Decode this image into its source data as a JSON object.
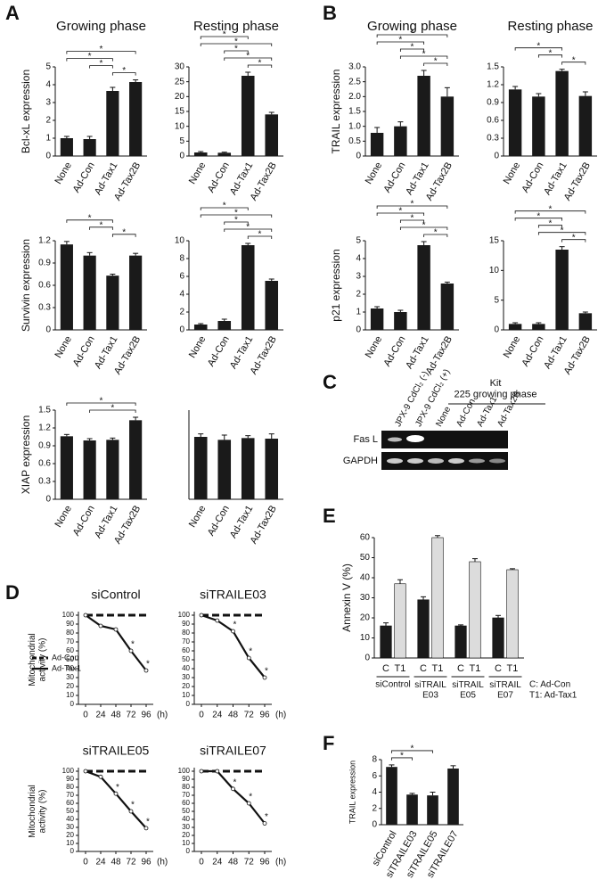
{
  "panel_labels": [
    "A",
    "B",
    "C",
    "D",
    "E",
    "F"
  ],
  "chart_data": [
    {
      "type": "bar",
      "title": "Growing phase",
      "ylabel": "Bcl-xL expression",
      "categories": [
        "None",
        "Ad-Con",
        "Ad-Tax1",
        "Ad-Tax2B"
      ],
      "values": [
        1.0,
        0.95,
        3.65,
        4.15
      ],
      "errors": [
        0.1,
        0.15,
        0.2,
        0.12
      ],
      "color": "#1a1a1a",
      "ylim": [
        0,
        5
      ],
      "yticks": [
        0,
        1,
        2,
        3,
        4,
        5
      ],
      "significance": [
        {
          "from": 2,
          "to": 3,
          "label": "*"
        },
        {
          "from": 1,
          "to": 2,
          "label": "*"
        },
        {
          "from": 0,
          "to": 2,
          "label": "*"
        },
        {
          "from": 0,
          "to": 3,
          "label": "*"
        }
      ]
    },
    {
      "type": "bar",
      "title": "Resting phase",
      "categories": [
        "None",
        "Ad-Con",
        "Ad-Tax1",
        "Ad-Tax2B"
      ],
      "values": [
        1.2,
        1.1,
        27,
        14
      ],
      "errors": [
        0.3,
        0.2,
        1.2,
        0.7
      ],
      "color": "#1a1a1a",
      "ylim": [
        0,
        30
      ],
      "yticks": [
        0,
        5,
        10,
        15,
        20,
        25,
        30
      ],
      "significance": [
        {
          "from": 2,
          "to": 3,
          "label": "*"
        },
        {
          "from": 1,
          "to": 3,
          "label": "*"
        },
        {
          "from": 1,
          "to": 2,
          "label": "*"
        },
        {
          "from": 0,
          "to": 3,
          "label": "*"
        },
        {
          "from": 0,
          "to": 2,
          "label": "*"
        }
      ]
    },
    {
      "type": "bar",
      "ylabel": "Survivin expression",
      "categories": [
        "None",
        "Ad-Con",
        "Ad-Tax1",
        "Ad-Tax2B"
      ],
      "values": [
        1.15,
        1.0,
        0.73,
        1.0
      ],
      "errors": [
        0.04,
        0.04,
        0.02,
        0.03
      ],
      "color": "#1a1a1a",
      "ylim": [
        0,
        1.2
      ],
      "yticks": [
        0,
        0.3,
        0.6,
        0.9,
        1.2
      ],
      "significance": [
        {
          "from": 2,
          "to": 3,
          "label": "*"
        },
        {
          "from": 1,
          "to": 2,
          "label": "*"
        },
        {
          "from": 0,
          "to": 2,
          "label": "*"
        }
      ]
    },
    {
      "type": "bar",
      "categories": [
        "None",
        "Ad-Con",
        "Ad-Tax1",
        "Ad-Tax2B"
      ],
      "values": [
        0.6,
        1.0,
        9.5,
        5.5
      ],
      "errors": [
        0.1,
        0.2,
        0.2,
        0.2
      ],
      "color": "#1a1a1a",
      "ylim": [
        0,
        10
      ],
      "yticks": [
        0,
        2,
        4,
        6,
        8,
        10
      ],
      "significance": [
        {
          "from": 2,
          "to": 3,
          "label": "*"
        },
        {
          "from": 1,
          "to": 3,
          "label": "*"
        },
        {
          "from": 1,
          "to": 2,
          "label": "*"
        },
        {
          "from": 0,
          "to": 3,
          "label": "*"
        },
        {
          "from": 0,
          "to": 2,
          "label": "*"
        }
      ]
    },
    {
      "type": "bar",
      "ylabel": "XIAP expression",
      "categories": [
        "None",
        "Ad-Con",
        "Ad-Tax1",
        "Ad-Tax2B"
      ],
      "values": [
        1.06,
        0.99,
        1.0,
        1.33
      ],
      "errors": [
        0.03,
        0.03,
        0.03,
        0.05
      ],
      "color": "#1a1a1a",
      "ylim": [
        0,
        1.5
      ],
      "yticks": [
        0,
        0.3,
        0.6,
        0.9,
        1.2,
        1.5
      ],
      "significance": [
        {
          "from": 1,
          "to": 3,
          "label": "*"
        },
        {
          "from": 0,
          "to": 3,
          "label": "*"
        }
      ]
    },
    {
      "type": "bar",
      "categories": [
        "None",
        "Ad-Con",
        "Ad-Tax1",
        "Ad-Tax2B"
      ],
      "values": [
        1.05,
        1.0,
        1.03,
        1.02
      ],
      "errors": [
        0.05,
        0.08,
        0.04,
        0.08
      ],
      "color": "#1a1a1a",
      "ylim": [
        0,
        1.5
      ]
    },
    {
      "type": "bar",
      "title": "Growing phase",
      "ylabel": "TRAIL expression",
      "categories": [
        "None",
        "Ad-Con",
        "Ad-Tax1",
        "Ad-Tax2B"
      ],
      "values": [
        0.78,
        1.0,
        2.7,
        2.0
      ],
      "errors": [
        0.18,
        0.15,
        0.18,
        0.3
      ],
      "color": "#1a1a1a",
      "ylim": [
        0,
        3
      ],
      "yticks": [
        0,
        0.5,
        {
          "value": 1,
          "label": "1.0"
        },
        1.5,
        {
          "value": 2,
          "label": "2.0"
        },
        2.5,
        {
          "value": 3,
          "label": "3.0"
        }
      ],
      "significance": [
        {
          "from": 2,
          "to": 3,
          "label": "*"
        },
        {
          "from": 1,
          "to": 3,
          "label": "*"
        },
        {
          "from": 1,
          "to": 2,
          "label": "*"
        },
        {
          "from": 0,
          "to": 2,
          "label": "*"
        },
        {
          "from": 0,
          "to": 3,
          "label": "*"
        }
      ]
    },
    {
      "type": "bar",
      "title": "Resting phase",
      "categories": [
        "None",
        "Ad-Con",
        "Ad-Tax1",
        "Ad-Tax2B"
      ],
      "values": [
        1.12,
        1.0,
        1.43,
        1.01
      ],
      "errors": [
        0.05,
        0.05,
        0.03,
        0.07
      ],
      "color": "#1a1a1a",
      "ylim": [
        0,
        1.5
      ],
      "yticks": [
        0,
        0.3,
        0.6,
        0.9,
        1.2,
        1.5
      ],
      "significance": [
        {
          "from": 2,
          "to": 3,
          "label": "*"
        },
        {
          "from": 1,
          "to": 2,
          "label": "*"
        },
        {
          "from": 0,
          "to": 2,
          "label": "*"
        }
      ]
    },
    {
      "type": "bar",
      "ylabel": "p21 expression",
      "categories": [
        "None",
        "Ad-Con",
        "Ad-Tax1",
        "Ad-Tax2B"
      ],
      "values": [
        1.2,
        1.0,
        4.75,
        2.6
      ],
      "errors": [
        0.1,
        0.1,
        0.2,
        0.08
      ],
      "color": "#1a1a1a",
      "ylim": [
        0,
        5
      ],
      "yticks": [
        0,
        1,
        2,
        3,
        4,
        5
      ],
      "significance": [
        {
          "from": 2,
          "to": 3,
          "label": "*"
        },
        {
          "from": 1,
          "to": 3,
          "label": "*"
        },
        {
          "from": 1,
          "to": 2,
          "label": "*"
        },
        {
          "from": 0,
          "to": 2,
          "label": "*"
        },
        {
          "from": 0,
          "to": 3,
          "label": "*"
        }
      ]
    },
    {
      "type": "bar",
      "categories": [
        "None",
        "Ad-Con",
        "Ad-Tax1",
        "Ad-Tax2B"
      ],
      "values": [
        1.0,
        1.0,
        13.5,
        2.8
      ],
      "errors": [
        0.2,
        0.2,
        0.5,
        0.2
      ],
      "color": "#1a1a1a",
      "ylim": [
        0,
        15
      ],
      "yticks": [
        0,
        5,
        10,
        15
      ],
      "significance": [
        {
          "from": 2,
          "to": 3,
          "label": "*"
        },
        {
          "from": 1,
          "to": 3,
          "label": "*"
        },
        {
          "from": 1,
          "to": 2,
          "label": "*"
        },
        {
          "from": 0,
          "to": 2,
          "label": "*"
        },
        {
          "from": 0,
          "to": 3,
          "label": "*"
        }
      ]
    },
    {
      "type": "line",
      "title": "siControl",
      "ylabel": "Mitochondrial activity (%)",
      "legend": "lower-left",
      "x": [
        0,
        24,
        48,
        72,
        96
      ],
      "xlim": [
        0,
        96
      ],
      "xticks": [
        0,
        24,
        48,
        72,
        96
      ],
      "xlabel": "(h)",
      "ylim": [
        0,
        100
      ],
      "yticks": [
        0,
        10,
        20,
        30,
        40,
        50,
        60,
        70,
        80,
        90,
        100
      ],
      "series": [
        {
          "name": "Ad-Con",
          "color": "#111111",
          "dashed": true,
          "values": [
            100,
            100,
            100,
            100,
            100
          ]
        },
        {
          "name": "Ad-Tax1",
          "color": "#111111",
          "dashed": false,
          "marker": "open-circle",
          "values": [
            100,
            88,
            84,
            60,
            38
          ]
        }
      ],
      "significant_points": [
        {
          "index": 3,
          "label": "*"
        },
        {
          "index": 4,
          "label": "*"
        }
      ]
    },
    {
      "type": "line",
      "title": "siTRAILE03",
      "x": [
        0,
        24,
        48,
        72,
        96
      ],
      "xlim": [
        0,
        96
      ],
      "xticks": [
        0,
        24,
        48,
        72,
        96
      ],
      "xlabel": "(h)",
      "ylim": [
        0,
        100
      ],
      "yticks": [
        0,
        10,
        20,
        30,
        40,
        50,
        60,
        70,
        80,
        90,
        100
      ],
      "series": [
        {
          "color": "#111111",
          "dashed": true,
          "values": [
            100,
            100,
            100,
            100,
            100
          ]
        },
        {
          "color": "#111111",
          "dashed": false,
          "marker": "open-circle",
          "values": [
            100,
            94,
            82,
            52,
            30
          ]
        }
      ],
      "significant_points": [
        {
          "index": 2,
          "label": "*"
        },
        {
          "index": 3,
          "label": "*"
        },
        {
          "index": 4,
          "label": "*"
        }
      ]
    },
    {
      "type": "line",
      "title": "siTRAILE05",
      "ylabel": "Mitochondrial activity (%)",
      "x": [
        0,
        24,
        48,
        72,
        96
      ],
      "xlim": [
        0,
        96
      ],
      "xticks": [
        0,
        24,
        48,
        72,
        96
      ],
      "xlabel": "(h)",
      "ylim": [
        0,
        100
      ],
      "yticks": [
        0,
        10,
        20,
        30,
        40,
        50,
        60,
        70,
        80,
        90,
        100
      ],
      "series": [
        {
          "color": "#111111",
          "dashed": true,
          "values": [
            100,
            100,
            100,
            100,
            100
          ]
        },
        {
          "color": "#111111",
          "dashed": false,
          "marker": "open-circle",
          "values": [
            100,
            93,
            72,
            50,
            29
          ]
        }
      ],
      "significant_points": [
        {
          "index": 2,
          "label": "*"
        },
        {
          "index": 3,
          "label": "*"
        },
        {
          "index": 4,
          "label": "*"
        }
      ]
    },
    {
      "type": "line",
      "title": "siTRAILE07",
      "x": [
        0,
        24,
        48,
        72,
        96
      ],
      "xlim": [
        0,
        96
      ],
      "xticks": [
        0,
        24,
        48,
        72,
        96
      ],
      "xlabel": "(h)",
      "ylim": [
        0,
        100
      ],
      "yticks": [
        0,
        10,
        20,
        30,
        40,
        50,
        60,
        70,
        80,
        90,
        100
      ],
      "series": [
        {
          "color": "#111111",
          "dashed": true,
          "values": [
            100,
            100,
            100,
            100,
            100
          ]
        },
        {
          "color": "#111111",
          "dashed": false,
          "marker": "open-circle",
          "values": [
            100,
            100,
            78,
            60,
            35
          ]
        }
      ],
      "significant_points": [
        {
          "index": 2,
          "label": "*"
        },
        {
          "index": 3,
          "label": "*"
        },
        {
          "index": 4,
          "label": "*"
        }
      ]
    },
    {
      "type": "grouped_bar",
      "ylabel": "Annexin V (%)",
      "categories": [
        "siControl",
        "siTRAIL E03",
        "siTRAIL E05",
        "siTRAIL E07"
      ],
      "ylim": [
        0,
        60
      ],
      "yticks": [
        0,
        10,
        20,
        30,
        40,
        50,
        60
      ],
      "series": [
        {
          "name": "C",
          "color": "#1a1a1a",
          "values": [
            16,
            29,
            16,
            20
          ],
          "errors": [
            1.5,
            1.5,
            0.5,
            1.2
          ]
        },
        {
          "name": "T1",
          "color": "#dcdcdc",
          "values": [
            37,
            60,
            48,
            44
          ],
          "errors": [
            2,
            1,
            1.5,
            0.5
          ]
        }
      ],
      "legend_note": [
        "C: Ad-Con",
        "T1: Ad-Tax1"
      ]
    },
    {
      "type": "bar",
      "ylabel": "TRAIL expression",
      "categories": [
        "siControl",
        "siTRAILE03",
        "siTRAILE05",
        "siTRAILE07"
      ],
      "values": [
        7.1,
        3.7,
        3.6,
        6.9
      ],
      "errors": [
        0.25,
        0.15,
        0.4,
        0.35
      ],
      "color": "#1a1a1a",
      "ylim": [
        0,
        8
      ],
      "yticks": [
        0,
        2,
        4,
        6,
        8
      ],
      "significance": [
        {
          "from": 0,
          "to": 1,
          "label": "*"
        },
        {
          "from": 0,
          "to": 2,
          "label": "*"
        }
      ]
    }
  ],
  "gel": {
    "lanes": [
      "JPX-9 CdCl₂ (-)",
      "JPX-9 CdCl₂ (+)",
      "None",
      "Ad-Con",
      "Ad-Tax1",
      "Ad-Tax2B"
    ],
    "group_label": "Kit 225 growing phase",
    "rows": [
      "Fas L",
      "GAPDH"
    ]
  }
}
